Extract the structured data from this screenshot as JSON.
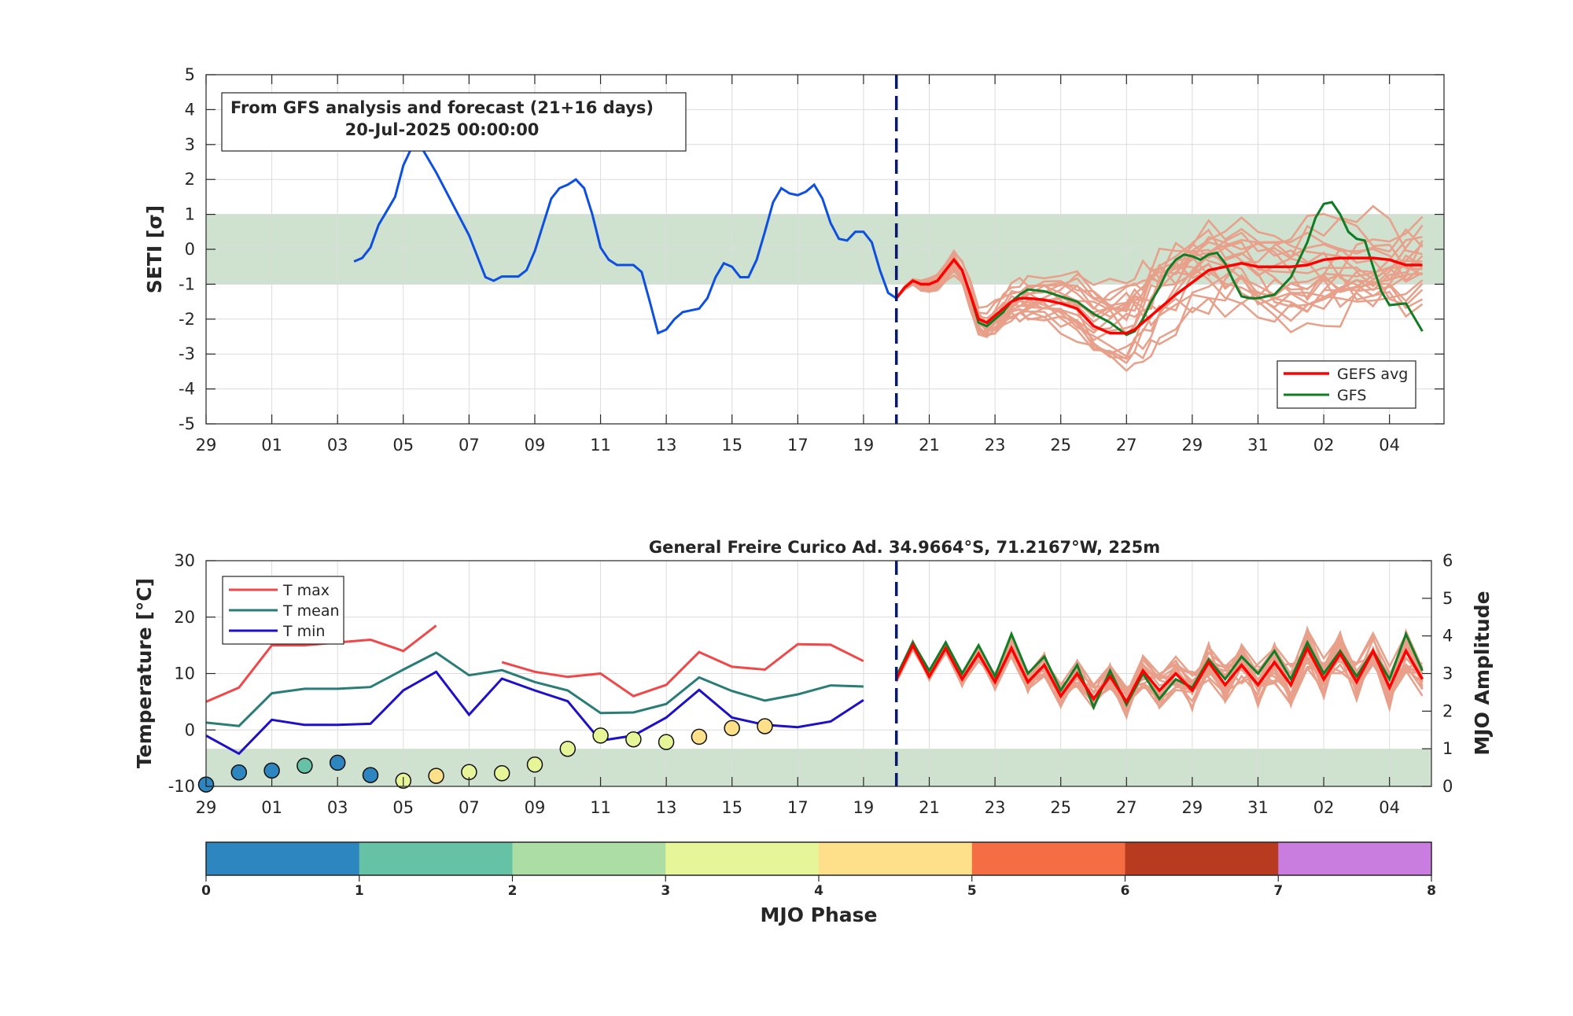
{
  "chart_data": [
    {
      "type": "line",
      "ylabel": "SETI [σ]",
      "ylim": [
        -5,
        5
      ],
      "yticks": [
        5,
        4,
        3,
        2,
        1,
        0,
        -1,
        -2,
        -3,
        -4,
        -5
      ],
      "x_range_days": [
        "2025-06-29",
        "2025-08-05"
      ],
      "xtick_labels": [
        "29",
        "01",
        "03",
        "05",
        "07",
        "09",
        "11",
        "13",
        "15",
        "17",
        "19",
        "21",
        "23",
        "25",
        "27",
        "29",
        "31",
        "02",
        "04"
      ],
      "forecast_start": "2025-07-20",
      "normal_band": [
        -1,
        1
      ],
      "textbox": {
        "line1": "From GFS analysis and forecast (21+16 days)",
        "line2": "20-Jul-2025 00:00:00"
      },
      "legend": {
        "gefs_avg": "GEFS avg",
        "gfs": "GFS"
      },
      "colors": {
        "analysis": "#0d4fe0",
        "gefs_avg": "#ff0000",
        "gfs": "#107d26",
        "members": "#e8a08a",
        "band": "#cfe1cf"
      },
      "analysis": {
        "x": [
          "2025-07-03T12",
          "2025-07-03T18",
          "2025-07-04",
          "2025-07-04T06",
          "2025-07-04T12",
          "2025-07-04T18",
          "2025-07-05",
          "2025-07-05T06",
          "2025-07-05T12",
          "2025-07-06",
          "2025-07-06T12",
          "2025-07-07",
          "2025-07-07T12",
          "2025-07-07T18",
          "2025-07-08",
          "2025-07-08T12",
          "2025-07-08T18",
          "2025-07-09",
          "2025-07-09T06",
          "2025-07-09T12",
          "2025-07-09T18",
          "2025-07-10",
          "2025-07-10T06",
          "2025-07-10T12",
          "2025-07-10T18",
          "2025-07-11",
          "2025-07-11T06",
          "2025-07-11T12",
          "2025-07-11T18",
          "2025-07-12",
          "2025-07-12T06",
          "2025-07-12T12",
          "2025-07-12T18",
          "2025-07-13",
          "2025-07-13T06",
          "2025-07-13T12",
          "2025-07-13T18",
          "2025-07-14",
          "2025-07-14T06",
          "2025-07-14T12",
          "2025-07-14T18",
          "2025-07-15",
          "2025-07-15T06",
          "2025-07-15T12",
          "2025-07-15T18",
          "2025-07-16",
          "2025-07-16T06",
          "2025-07-16T12",
          "2025-07-16T18",
          "2025-07-17",
          "2025-07-17T06",
          "2025-07-17T12",
          "2025-07-17T18",
          "2025-07-18",
          "2025-07-18T06",
          "2025-07-18T12",
          "2025-07-18T18",
          "2025-07-19",
          "2025-07-19T06",
          "2025-07-19T12",
          "2025-07-19T18",
          "2025-07-20"
        ],
        "y": [
          -0.35,
          -0.25,
          0.05,
          0.7,
          1.1,
          1.5,
          2.4,
          2.9,
          3.0,
          2.2,
          1.3,
          0.4,
          -0.8,
          -0.9,
          -0.78,
          -0.78,
          -0.6,
          -0.05,
          0.7,
          1.45,
          1.75,
          1.85,
          2.0,
          1.75,
          1.0,
          0.05,
          -0.3,
          -0.45,
          -0.45,
          -0.45,
          -0.65,
          -1.5,
          -2.4,
          -2.3,
          -2.0,
          -1.8,
          -1.75,
          -1.7,
          -1.4,
          -0.8,
          -0.4,
          -0.5,
          -0.8,
          -0.8,
          -0.3,
          0.5,
          1.35,
          1.75,
          1.6,
          1.55,
          1.65,
          1.85,
          1.45,
          0.75,
          0.3,
          0.25,
          0.5,
          0.5,
          0.2,
          -0.6,
          -1.25,
          -1.4
        ]
      },
      "gefs_avg": {
        "x": [
          "2025-07-20",
          "2025-07-20T06",
          "2025-07-20T12",
          "2025-07-20T18",
          "2025-07-21",
          "2025-07-21T06",
          "2025-07-21T12",
          "2025-07-21T18",
          "2025-07-22",
          "2025-07-22T06",
          "2025-07-22T12",
          "2025-07-22T18",
          "2025-07-23",
          "2025-07-23T06",
          "2025-07-23T12",
          "2025-07-23T18",
          "2025-07-24",
          "2025-07-24T12",
          "2025-07-25",
          "2025-07-25T12",
          "2025-07-26",
          "2025-07-26T12",
          "2025-07-27",
          "2025-07-27T06",
          "2025-07-27T12",
          "2025-07-27T18",
          "2025-07-28",
          "2025-07-28T12",
          "2025-07-29",
          "2025-07-29T12",
          "2025-07-30",
          "2025-07-30T12",
          "2025-07-31",
          "2025-07-31T12",
          "2025-08-01",
          "2025-08-01T12",
          "2025-08-02",
          "2025-08-02T12",
          "2025-08-03",
          "2025-08-03T12",
          "2025-08-04",
          "2025-08-04T12",
          "2025-08-05"
        ],
        "y": [
          -1.4,
          -1.1,
          -0.9,
          -1.0,
          -1.0,
          -0.9,
          -0.6,
          -0.3,
          -0.6,
          -1.3,
          -2.0,
          -2.1,
          -1.9,
          -1.7,
          -1.5,
          -1.4,
          -1.4,
          -1.45,
          -1.55,
          -1.7,
          -2.2,
          -2.4,
          -2.4,
          -2.3,
          -2.1,
          -1.9,
          -1.7,
          -1.3,
          -0.95,
          -0.6,
          -0.5,
          -0.4,
          -0.5,
          -0.5,
          -0.5,
          -0.45,
          -0.3,
          -0.25,
          -0.25,
          -0.25,
          -0.3,
          -0.45,
          -0.45
        ]
      },
      "gfs": {
        "x": [
          "2025-07-20",
          "2025-07-20T06",
          "2025-07-20T12",
          "2025-07-20T18",
          "2025-07-21",
          "2025-07-21T06",
          "2025-07-21T12",
          "2025-07-21T18",
          "2025-07-22",
          "2025-07-22T06",
          "2025-07-22T12",
          "2025-07-22T18",
          "2025-07-23",
          "2025-07-23T06",
          "2025-07-23T12",
          "2025-07-23T18",
          "2025-07-24",
          "2025-07-24T12",
          "2025-07-25",
          "2025-07-25T12",
          "2025-07-26",
          "2025-07-26T12",
          "2025-07-27",
          "2025-07-27T06",
          "2025-07-27T12",
          "2025-07-27T18",
          "2025-07-28",
          "2025-07-28T06",
          "2025-07-28T12",
          "2025-07-28T18",
          "2025-07-29",
          "2025-07-29T06",
          "2025-07-29T12",
          "2025-07-29T18",
          "2025-07-30",
          "2025-07-30T06",
          "2025-07-30T12",
          "2025-07-30T18",
          "2025-07-31",
          "2025-07-31T12",
          "2025-08-01",
          "2025-08-01T06",
          "2025-08-01T12",
          "2025-08-01T18",
          "2025-08-02",
          "2025-08-02T06",
          "2025-08-02T12",
          "2025-08-02T18",
          "2025-08-03",
          "2025-08-03T06",
          "2025-08-03T12",
          "2025-08-03T18",
          "2025-08-04",
          "2025-08-04T12",
          "2025-08-05"
        ],
        "y": [
          -1.4,
          -1.1,
          -0.9,
          -1.0,
          -1.0,
          -0.9,
          -0.6,
          -0.3,
          -0.6,
          -1.3,
          -2.1,
          -2.2,
          -2.0,
          -1.8,
          -1.5,
          -1.3,
          -1.15,
          -1.2,
          -1.35,
          -1.5,
          -1.85,
          -2.1,
          -2.45,
          -2.35,
          -2.0,
          -1.5,
          -1.1,
          -0.6,
          -0.3,
          -0.15,
          -0.2,
          -0.3,
          -0.15,
          -0.1,
          -0.4,
          -0.9,
          -1.35,
          -1.4,
          -1.4,
          -1.3,
          -0.8,
          -0.3,
          0.2,
          0.9,
          1.3,
          1.35,
          1.0,
          0.5,
          0.3,
          0.25,
          -0.5,
          -1.2,
          -1.6,
          -1.55,
          -2.35
        ]
      }
    },
    {
      "type": "line",
      "title": "General Freire Curico Ad. 34.9664°S, 71.2167°W, 225m",
      "ylabel": "Temperature [°C]",
      "ylabel_right": "MJO Amplitude",
      "ylim": [
        -10,
        30
      ],
      "yticks": [
        30,
        20,
        10,
        0,
        -10
      ],
      "ylim_right": [
        0,
        6
      ],
      "yticks_right": [
        6,
        5,
        4,
        3,
        2,
        1,
        0
      ],
      "mjo_band": [
        0,
        1
      ],
      "forecast_start": "2025-07-20",
      "x_range_days": [
        "2025-06-29",
        "2025-08-05"
      ],
      "xtick_labels": [
        "29",
        "01",
        "03",
        "05",
        "07",
        "09",
        "11",
        "13",
        "15",
        "17",
        "19",
        "21",
        "23",
        "25",
        "27",
        "29",
        "31",
        "02",
        "04"
      ],
      "legend": {
        "tmax": "T max",
        "tmean": "T mean",
        "tmin": "T min"
      },
      "colors": {
        "tmax": "#f04848",
        "tmean": "#2a7d76",
        "tmin": "#1d10c8",
        "gefs_avg": "#ff0000",
        "gfs": "#107d26",
        "members": "#e8a08a",
        "band": "#cfe1cf"
      },
      "series": [
        {
          "name": "T max",
          "x": [
            "2025-06-29",
            "2025-06-30",
            "2025-07-01",
            "2025-07-02",
            "2025-07-03",
            "2025-07-04",
            "2025-07-05",
            "2025-07-06",
            null,
            "2025-07-08",
            "2025-07-09",
            "2025-07-10",
            "2025-07-11",
            "2025-07-12",
            "2025-07-13",
            "2025-07-14",
            "2025-07-15",
            "2025-07-16",
            "2025-07-17",
            "2025-07-18",
            "2025-07-19"
          ],
          "values": [
            5.0,
            7.5,
            15.0,
            15.0,
            15.5,
            16.0,
            14.0,
            18.5,
            null,
            12.0,
            10.3,
            9.4,
            10.0,
            6.0,
            8.0,
            13.8,
            11.2,
            10.7,
            15.2,
            15.1,
            12.2
          ]
        },
        {
          "name": "T mean",
          "x": [
            "2025-06-29",
            "2025-06-30",
            "2025-07-01",
            "2025-07-02",
            "2025-07-03",
            "2025-07-04",
            "2025-07-05",
            "2025-07-06",
            "2025-07-07",
            "2025-07-08",
            "2025-07-09",
            "2025-07-10",
            "2025-07-11",
            "2025-07-12",
            "2025-07-13",
            "2025-07-14",
            "2025-07-15",
            "2025-07-16",
            "2025-07-17",
            "2025-07-18",
            "2025-07-19"
          ],
          "values": [
            1.3,
            0.7,
            6.5,
            7.3,
            7.3,
            7.6,
            10.7,
            13.7,
            9.7,
            10.6,
            8.5,
            7.0,
            3.0,
            3.1,
            4.6,
            9.3,
            6.9,
            5.2,
            6.3,
            7.9,
            7.7
          ]
        },
        {
          "name": "T min",
          "x": [
            "2025-06-29",
            "2025-06-30",
            "2025-07-01",
            "2025-07-02",
            "2025-07-03",
            "2025-07-04",
            "2025-07-05",
            "2025-07-06",
            "2025-07-07",
            "2025-07-08",
            "2025-07-09",
            "2025-07-10",
            "2025-07-11",
            "2025-07-12",
            "2025-07-13",
            "2025-07-14",
            "2025-07-15",
            "2025-07-16",
            "2025-07-17",
            "2025-07-18",
            "2025-07-19"
          ],
          "values": [
            -1.0,
            -4.2,
            1.8,
            0.9,
            0.9,
            1.1,
            7.0,
            10.3,
            2.7,
            9.1,
            7.0,
            5.1,
            -1.9,
            -1.0,
            2.2,
            7.1,
            2.2,
            0.9,
            0.5,
            1.5,
            5.3
          ]
        }
      ],
      "mjo_points": {
        "x": [
          "2025-06-29",
          "2025-06-30",
          "2025-07-01",
          "2025-07-02",
          "2025-07-03",
          "2025-07-04",
          "2025-07-05",
          "2025-07-06",
          "2025-07-07",
          "2025-07-08",
          "2025-07-09",
          "2025-07-10",
          "2025-07-11",
          "2025-07-12",
          "2025-07-13",
          "2025-07-14",
          "2025-07-15",
          "2025-07-16"
        ],
        "amplitude": [
          0.05,
          0.37,
          0.42,
          0.55,
          0.63,
          0.3,
          0.15,
          0.28,
          0.38,
          0.35,
          0.58,
          1.0,
          1.35,
          1.25,
          1.18,
          1.32,
          1.55,
          1.6
        ],
        "phase": [
          1,
          1,
          1,
          2,
          1,
          1,
          4,
          5,
          4,
          4,
          4,
          4,
          4,
          4,
          4,
          5,
          5,
          5
        ]
      },
      "forecast_mean": {
        "x": [
          "2025-07-20",
          "2025-07-20T12",
          "2025-07-21",
          "2025-07-21T12",
          "2025-07-22",
          "2025-07-22T12",
          "2025-07-23",
          "2025-07-23T12",
          "2025-07-24",
          "2025-07-24T12",
          "2025-07-25",
          "2025-07-25T12",
          "2025-07-26",
          "2025-07-26T12",
          "2025-07-27",
          "2025-07-27T12",
          "2025-07-28",
          "2025-07-28T12",
          "2025-07-29",
          "2025-07-29T12",
          "2025-07-30",
          "2025-07-30T12",
          "2025-07-31",
          "2025-07-31T12",
          "2025-08-01",
          "2025-08-01T12",
          "2025-08-02",
          "2025-08-02T12",
          "2025-08-03",
          "2025-08-03T12",
          "2025-08-04",
          "2025-08-04T12",
          "2025-08-05"
        ],
        "values": [
          9.0,
          15.0,
          9.5,
          14.5,
          9.0,
          13.5,
          8.5,
          14.5,
          8.5,
          11.5,
          6.0,
          10.0,
          5.5,
          9.5,
          5.0,
          10.5,
          7.0,
          10.0,
          7.0,
          12.0,
          8.0,
          11.5,
          8.0,
          12.0,
          8.0,
          14.5,
          9.0,
          13.5,
          8.5,
          14.0,
          7.5,
          14.0,
          9.0
        ]
      },
      "forecast_gfs": {
        "x": [
          "2025-07-20",
          "2025-07-20T12",
          "2025-07-21",
          "2025-07-21T12",
          "2025-07-22",
          "2025-07-22T12",
          "2025-07-23",
          "2025-07-23T12",
          "2025-07-24",
          "2025-07-24T12",
          "2025-07-25",
          "2025-07-25T12",
          "2025-07-26",
          "2025-07-26T12",
          "2025-07-27",
          "2025-07-27T12",
          "2025-07-28",
          "2025-07-28T12",
          "2025-07-29",
          "2025-07-29T12",
          "2025-07-30",
          "2025-07-30T12",
          "2025-07-31",
          "2025-07-31T12",
          "2025-08-01",
          "2025-08-01T12",
          "2025-08-02",
          "2025-08-02T12",
          "2025-08-03",
          "2025-08-03T12",
          "2025-08-04",
          "2025-08-04T12",
          "2025-08-05"
        ],
        "values": [
          9.5,
          15.5,
          10.5,
          15.5,
          10.0,
          15.0,
          9.5,
          17.0,
          10.0,
          13.0,
          7.0,
          11.5,
          4.0,
          10.5,
          4.5,
          10.0,
          5.5,
          9.0,
          7.5,
          12.5,
          9.0,
          13.0,
          10.0,
          14.0,
          9.0,
          15.5,
          10.0,
          14.0,
          9.5,
          14.0,
          9.0,
          17.0,
          10.5
        ]
      },
      "colorbar": {
        "label": "MJO Phase",
        "ticks": [
          "0",
          "1",
          "2",
          "3",
          "4",
          "5",
          "6",
          "7",
          "8"
        ],
        "colors": [
          "#2e86c1",
          "#66c2a5",
          "#abdda4",
          "#e6f598",
          "#fee08b",
          "#f46d43",
          "#b83b20",
          "#c97ddf"
        ]
      }
    }
  ]
}
